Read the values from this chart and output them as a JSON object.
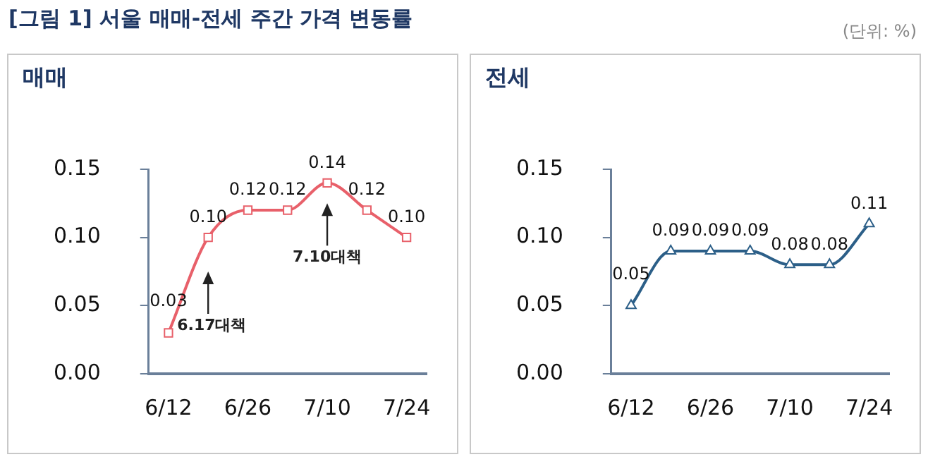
{
  "chart_data": [
    {
      "type": "line",
      "title": "매매",
      "annotations": [
        "[그림 1] 서울 매매-전세 주간 가격 변동률",
        "(단위: %)",
        "6.17대책",
        "7.10대책"
      ],
      "categories": [
        "6/12",
        null,
        "6/26",
        null,
        "7/10",
        null,
        "7/24"
      ],
      "series": [
        {
          "color": "#e8606a",
          "values": [
            0.03,
            0.1,
            0.12,
            0.12,
            0.14,
            0.12,
            0.1
          ],
          "value_labels": [
            "0.03",
            "0.10",
            "0.12",
            "0.12",
            "0.14",
            "0.12",
            "0.10"
          ]
        }
      ],
      "ylim": [
        0,
        0.15
      ],
      "yticks": [
        {
          "value": 0,
          "label": "0.00"
        },
        {
          "value": 0.05,
          "label": "0.05"
        },
        {
          "value": 0.1,
          "label": "0.10"
        },
        {
          "value": 0.15,
          "label": "0.15"
        }
      ],
      "marker": "square",
      "grid": false,
      "legend": false
    },
    {
      "type": "line",
      "title": "전세",
      "categories": [
        "6/12",
        null,
        "6/26",
        null,
        "7/10",
        null,
        "7/24"
      ],
      "series": [
        {
          "color": "#2c5f88",
          "values": [
            0.05,
            0.09,
            0.09,
            0.09,
            0.08,
            0.08,
            0.11
          ],
          "value_labels": [
            "0.05",
            "0.09",
            "0.09",
            "0.09",
            "0.08",
            "0.08",
            "0.11"
          ]
        }
      ],
      "ylim": [
        0,
        0.15
      ],
      "yticks": [
        {
          "value": 0,
          "label": "0.00"
        },
        {
          "value": 0.05,
          "label": "0.05"
        },
        {
          "value": 0.1,
          "label": "0.10"
        },
        {
          "value": 0.15,
          "label": "0.15"
        }
      ],
      "marker": "triangle",
      "grid": false,
      "legend": false
    }
  ]
}
